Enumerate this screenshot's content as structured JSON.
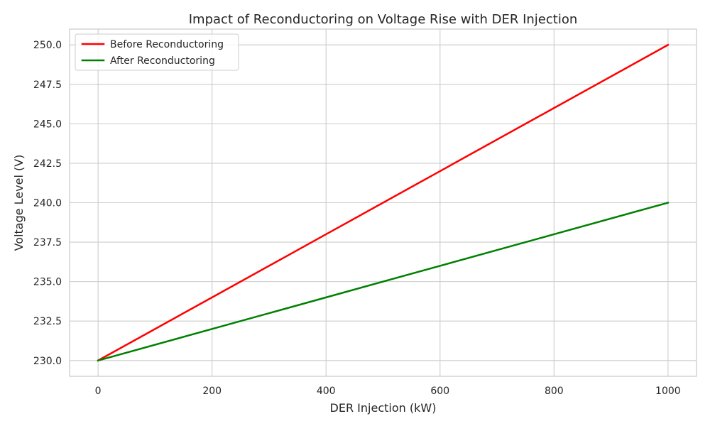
{
  "chart_data": {
    "type": "line",
    "title": "Impact of Reconductoring on Voltage Rise with DER Injection",
    "xlabel": "DER Injection (kW)",
    "ylabel": "Voltage Level (V)",
    "xlim": [
      -50,
      1050
    ],
    "ylim": [
      229.0,
      251.0
    ],
    "xticks": [
      0,
      200,
      400,
      600,
      800,
      1000
    ],
    "yticks": [
      230.0,
      232.5,
      235.0,
      237.5,
      240.0,
      242.5,
      245.0,
      247.5,
      250.0
    ],
    "xtick_labels": [
      "0",
      "200",
      "400",
      "600",
      "800",
      "1000"
    ],
    "ytick_labels": [
      "230.0",
      "232.5",
      "235.0",
      "237.5",
      "240.0",
      "242.5",
      "245.0",
      "247.5",
      "250.0"
    ],
    "grid": true,
    "legend_position": "top-left",
    "x": [
      0,
      200,
      400,
      600,
      800,
      1000
    ],
    "series": [
      {
        "name": "Before Reconductoring",
        "color": "#ff0000",
        "values": [
          230,
          234,
          238,
          242,
          246,
          250
        ]
      },
      {
        "name": "After Reconductoring",
        "color": "#008000",
        "values": [
          230,
          232,
          234,
          236,
          238,
          240
        ]
      }
    ]
  }
}
